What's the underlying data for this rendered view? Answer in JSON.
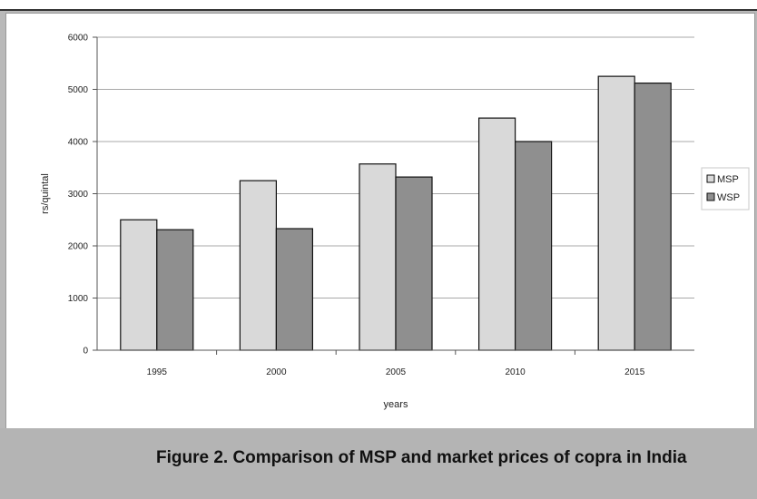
{
  "caption": "Figure 2. Comparison of MSP and market prices of copra in India",
  "chart_data": {
    "type": "bar",
    "categories": [
      "1995",
      "2000",
      "2005",
      "2010",
      "2015"
    ],
    "series": [
      {
        "name": "MSP",
        "values": [
          2500,
          3250,
          3570,
          4450,
          5250
        ],
        "color": "#d9d9d9"
      },
      {
        "name": "WSP",
        "values": [
          2310,
          2330,
          3320,
          4000,
          5120
        ],
        "color": "#8f8f8f"
      }
    ],
    "ylim": [
      0,
      6000
    ],
    "yticks": [
      0,
      1000,
      2000,
      3000,
      4000,
      5000,
      6000
    ],
    "xlabel": "years",
    "ylabel": "rs/quintal",
    "grid": true,
    "legend_position": "right"
  }
}
